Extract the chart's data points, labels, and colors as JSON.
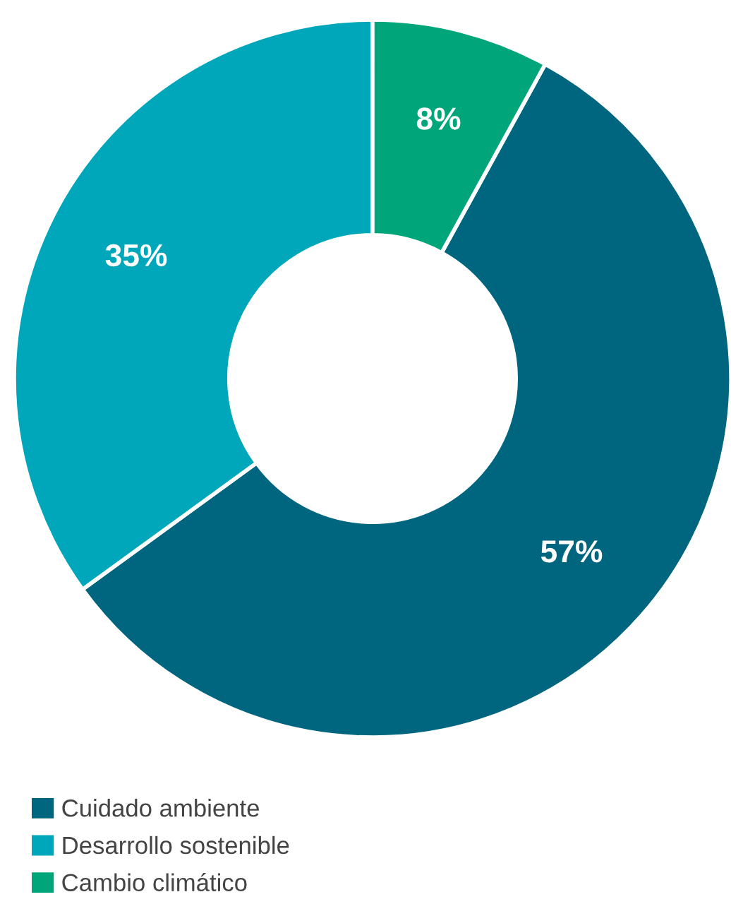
{
  "chart_data": {
    "type": "donut",
    "categories": [
      "Cuidado ambiente",
      "Desarrollo sostenible",
      "Cambio climático"
    ],
    "values": [
      57,
      35,
      8
    ],
    "colors": [
      "#006680",
      "#00a7bb",
      "#00a67a"
    ],
    "value_labels": [
      "57%",
      "35%",
      "8%"
    ],
    "legend": "bottom left"
  }
}
